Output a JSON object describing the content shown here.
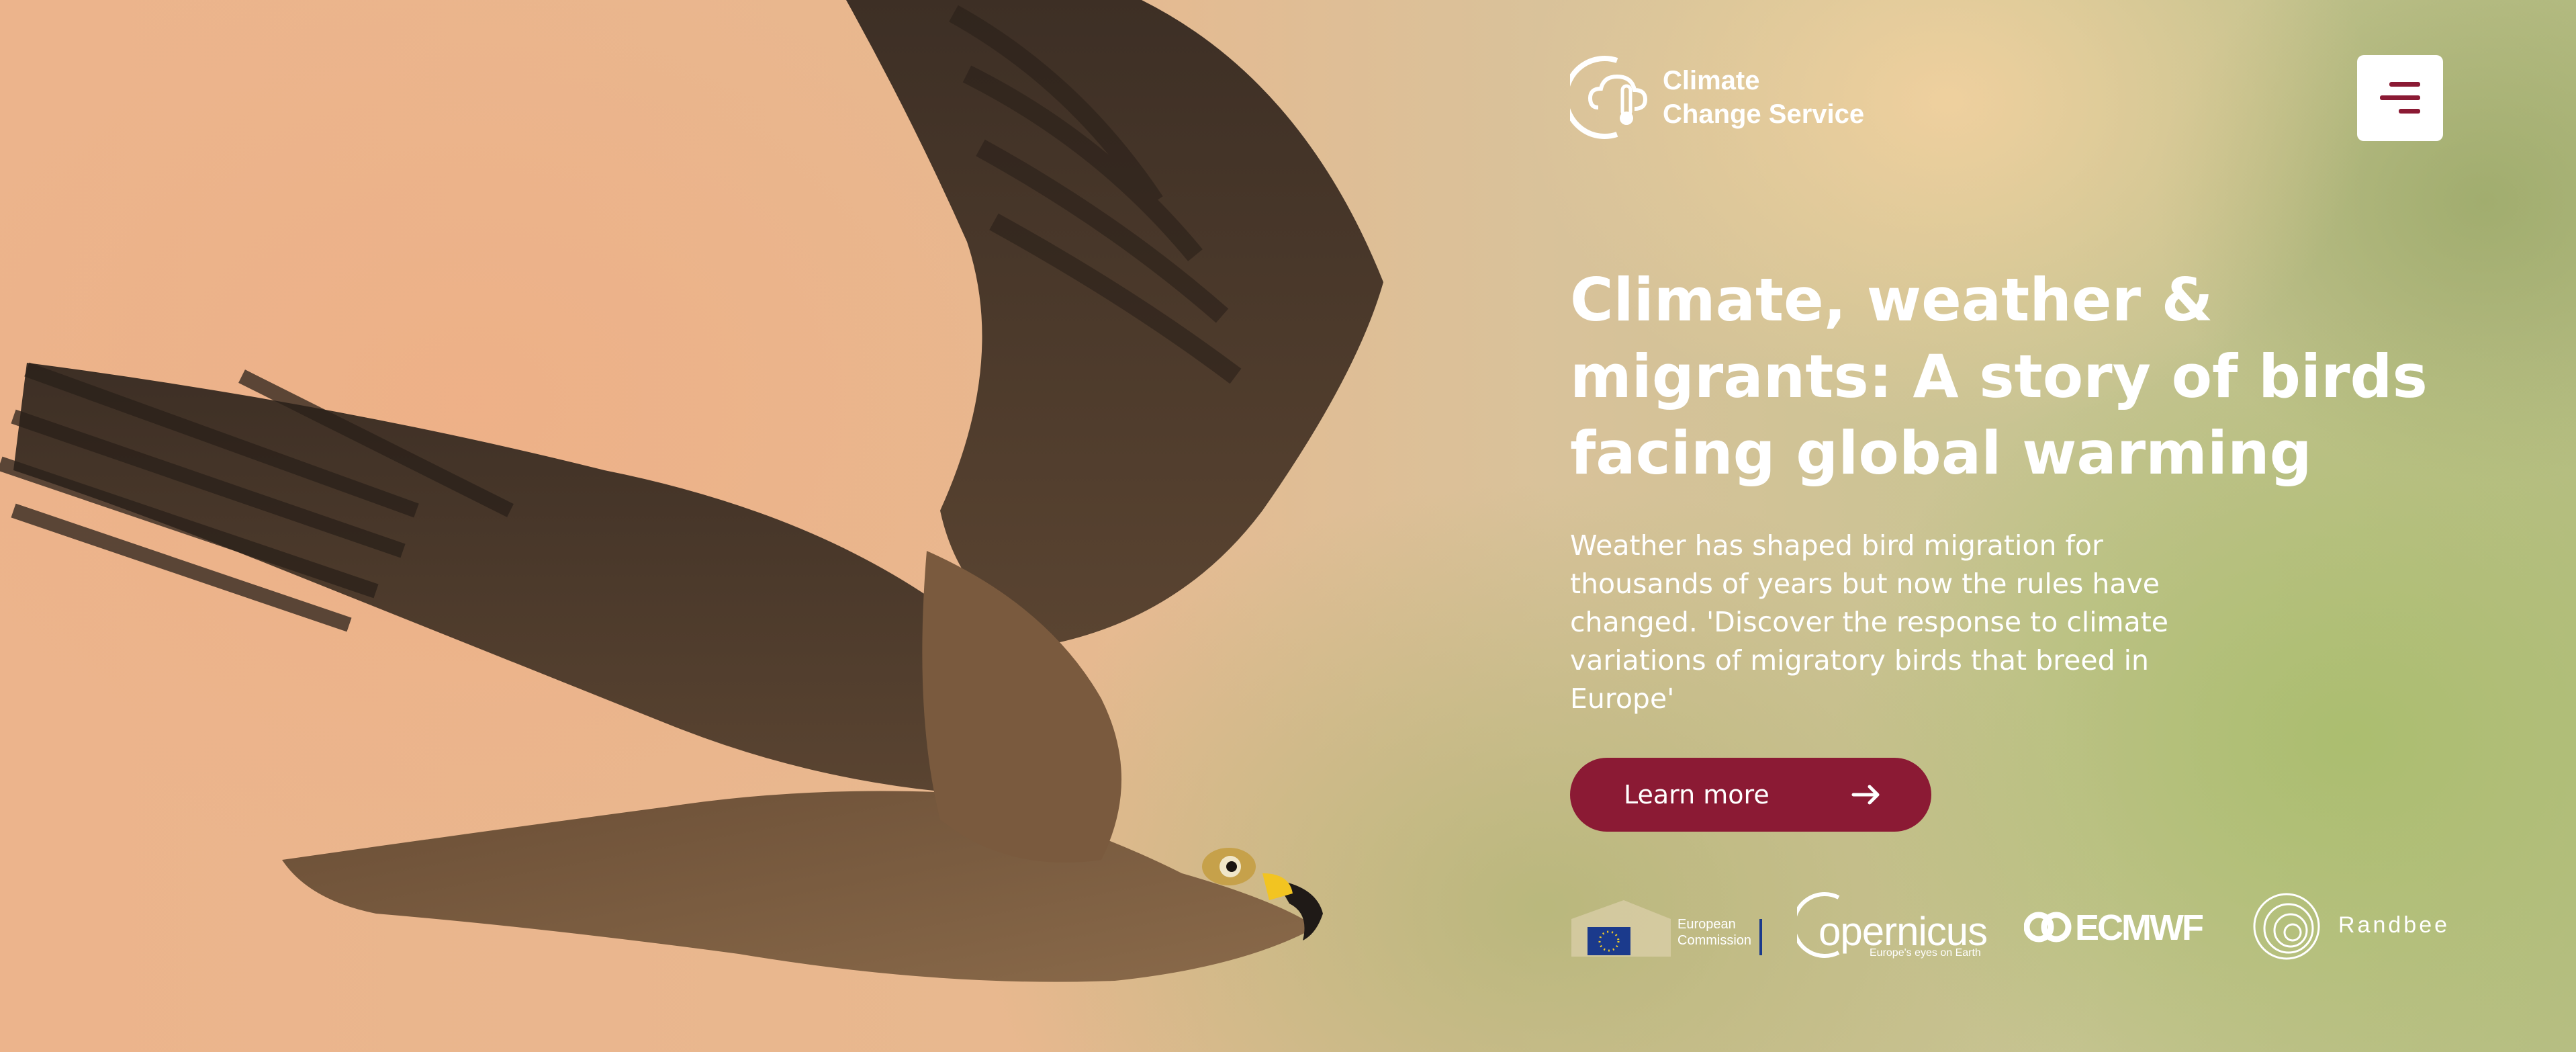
{
  "brand": {
    "name_line1": "Climate",
    "name_line2": "Change Service",
    "logo_icon": "cloud-thermometer-icon"
  },
  "menu": {
    "icon": "hamburger-menu-icon"
  },
  "hero": {
    "headline": "Climate, weather & migrants: A story of birds facing global warming",
    "subtitle": "Weather has shaped bird migration for thousands of years but now the rules have changed. 'Discover the response to climate variations of migratory birds that breed in Europe'",
    "cta_label": "Learn more",
    "cta_icon": "arrow-right-icon",
    "image": "flying-bird-of-prey-photo"
  },
  "partners": {
    "ec_line1": "European",
    "ec_line2": "Commission",
    "copernicus_name": "opernicus",
    "copernicus_tagline": "Europe's eyes on Earth",
    "ecmwf_name": "ECMWF",
    "randbee_name": "Randbee"
  },
  "colors": {
    "accent": "#8b1a34",
    "text_on_image": "#ffffff",
    "menu_bg": "#ffffff"
  }
}
